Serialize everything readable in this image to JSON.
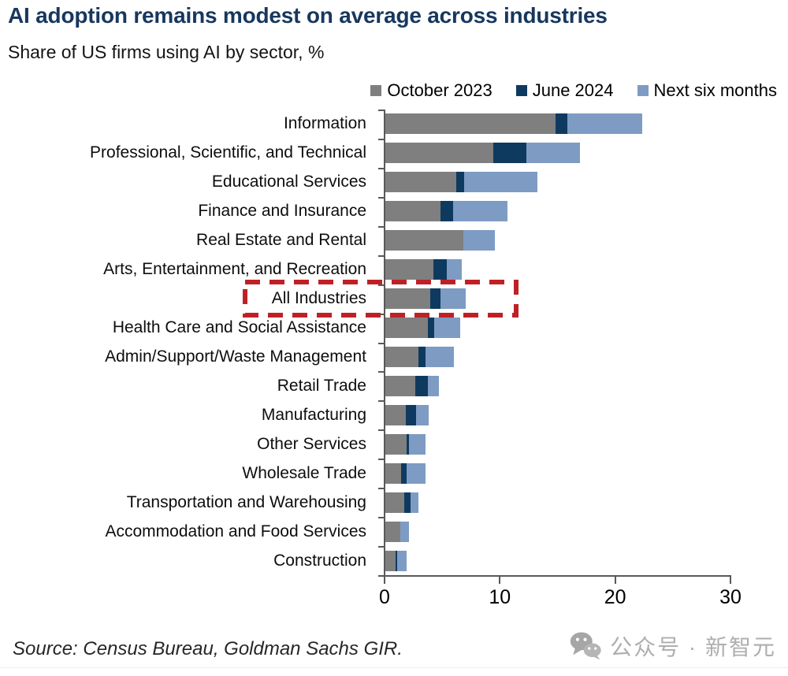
{
  "header": {
    "title": "AI adoption remains modest on average across industries",
    "subtitle": "Share of US firms using AI by sector, %"
  },
  "chart_data": {
    "type": "bar",
    "orientation": "horizontal",
    "title": "AI adoption remains modest on average across industries",
    "subtitle": "Share of US firms using AI by sector, %",
    "xlabel": "",
    "ylabel": "",
    "xlim": [
      0,
      30
    ],
    "x_ticks": [
      0,
      10,
      20,
      30
    ],
    "grid": false,
    "legend_position": "top-right",
    "value_note": "Values are cumulative shares (%); bar segments render the increments between series.",
    "categories": [
      "Information",
      "Professional, Scientific, and Technical",
      "Educational Services",
      "Finance and Insurance",
      "Real Estate and Rental",
      "Arts, Entertainment, and Recreation",
      "All Industries",
      "Health Care and Social Assistance",
      "Admin/Support/Waste Management",
      "Retail Trade",
      "Manufacturing",
      "Other Services",
      "Wholesale Trade",
      "Transportation and Warehousing",
      "Accommodation and Food Services",
      "Construction"
    ],
    "series": [
      {
        "name": "October 2023",
        "color": "#7f7f7f",
        "values": [
          14.9,
          9.5,
          6.3,
          4.9,
          6.9,
          4.3,
          4.0,
          3.8,
          3.0,
          2.7,
          1.9,
          2.0,
          1.5,
          1.8,
          1.4,
          1.0
        ]
      },
      {
        "name": "June 2024",
        "color": "#0f3a60",
        "values": [
          15.9,
          12.4,
          7.0,
          6.0,
          6.9,
          5.5,
          4.9,
          4.4,
          3.6,
          3.8,
          2.8,
          2.2,
          2.0,
          2.3,
          1.4,
          1.2
        ]
      },
      {
        "name": "Next six months",
        "color": "#7e9cc3",
        "values": [
          22.4,
          17.0,
          13.3,
          10.7,
          9.6,
          6.8,
          7.1,
          6.6,
          6.1,
          4.8,
          3.9,
          3.6,
          3.6,
          3.0,
          2.2,
          2.0
        ]
      }
    ],
    "highlight": {
      "category": "All Industries",
      "marker": "red-dashed-box",
      "color": "#bf2026"
    },
    "axis_color": "#595959"
  },
  "source": {
    "text": "Source: Census Bureau, Goldman Sachs GIR."
  },
  "watermark": {
    "icon": "wechat-icon",
    "text": "公众号 · 新智元",
    "color": "#aeaeae"
  }
}
